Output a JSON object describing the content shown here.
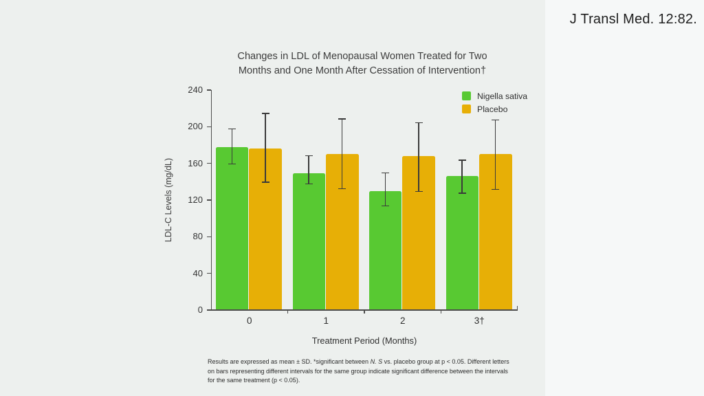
{
  "citation": "J Transl Med. 12:82.",
  "title": {
    "line1": "Changes in LDL of Menopausal Women Treated for Two",
    "line2": "Months and One Month After Cessation of Intervention†"
  },
  "footnote": {
    "pre": "Results are expressed as mean ± SD. *significant between ",
    "italic": "N. S",
    "post": " vs. placebo group at p < 0.05. Different letters on bars representing different intervals for the same group indicate significant difference between the intervals for the same treatment (p < 0.05)."
  },
  "chart_data": {
    "type": "bar",
    "title": "Changes in LDL of Menopausal Women Treated for Two Months and One Month After Cessation of Intervention†",
    "categories": [
      "0",
      "1",
      "2",
      "3†"
    ],
    "series": [
      {
        "name": "Nigella sativa",
        "color": "#58c932",
        "values": [
          178,
          149,
          130,
          146
        ],
        "err_up": [
          20,
          20,
          20,
          18
        ],
        "err_down": [
          19,
          12,
          17,
          19
        ]
      },
      {
        "name": "Placebo",
        "color": "#e7af06",
        "values": [
          176,
          170,
          168,
          170
        ],
        "err_up": [
          39,
          39,
          37,
          38
        ],
        "err_down": [
          37,
          38,
          39,
          39
        ]
      }
    ],
    "xlabel": "Treatment Period (Months)",
    "ylabel": "LDL-C Levels (mg/dL)",
    "ylim": [
      0,
      240
    ],
    "ytick_step": 40,
    "legend_position": "top-right",
    "grid": false,
    "error_bars": true
  }
}
